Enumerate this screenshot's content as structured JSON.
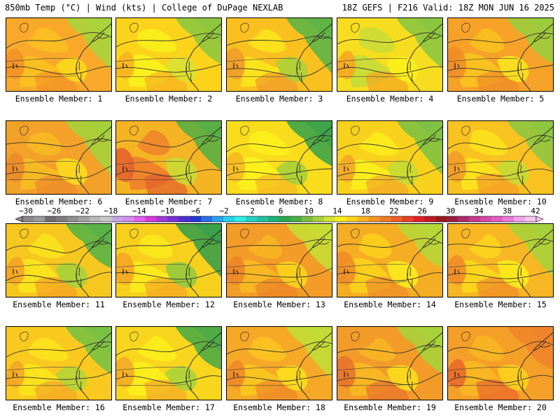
{
  "header": {
    "left": "850mb Temp (°C) | Wind (kts) | College of DuPage NEXLAB",
    "right": "18Z GEFS | F216 Valid: 18Z MON JUN 16 2025"
  },
  "members": [
    {
      "label": "Ensemble Member: 1",
      "base": "#f9a92a",
      "patches": [
        "#fbc21f",
        "#f29125",
        "#fbdc1c",
        "#a8d33a"
      ]
    },
    {
      "label": "Ensemble Member: 2",
      "base": "#fbd31b",
      "patches": [
        "#f8f21c",
        "#f7b120",
        "#d8e233",
        "#8ec63f"
      ]
    },
    {
      "label": "Ensemble Member: 3",
      "base": "#f9c020",
      "patches": [
        "#fbe71c",
        "#f09a2a",
        "#a9d13c",
        "#5fb446"
      ]
    },
    {
      "label": "Ensemble Member: 4",
      "base": "#f7dd1f",
      "patches": [
        "#c4dc38",
        "#f5a520",
        "#fbf11b",
        "#8cc63f"
      ]
    },
    {
      "label": "Ensemble Member: 5",
      "base": "#f6a228",
      "patches": [
        "#fbc41d",
        "#ef8b26",
        "#f9e81c",
        "#9ccb3c"
      ]
    },
    {
      "label": "Ensemble Member: 6",
      "base": "#f2a129",
      "patches": [
        "#f8bd22",
        "#ec8a29",
        "#fbe11c",
        "#a6d03a"
      ]
    },
    {
      "label": "Ensemble Member: 7",
      "base": "#f5b423",
      "patches": [
        "#ee7e2b",
        "#e35f2c",
        "#c7dd35",
        "#5aaf44"
      ]
    },
    {
      "label": "Ensemble Member: 8",
      "base": "#f9dc1c",
      "patches": [
        "#fbf21c",
        "#f7b721",
        "#a4d03b",
        "#3ea44a"
      ]
    },
    {
      "label": "Ensemble Member: 9",
      "base": "#f8d11d",
      "patches": [
        "#fbef1c",
        "#f3a626",
        "#c3dc35",
        "#7fc143"
      ]
    },
    {
      "label": "Ensemble Member: 10",
      "base": "#f8c221",
      "patches": [
        "#fbe51c",
        "#f39a28",
        "#c4dc35",
        "#8fc640"
      ]
    },
    {
      "label": "Ensemble Member: 11",
      "base": "#f6c71f",
      "patches": [
        "#fbe51c",
        "#f5a024",
        "#a3d03b",
        "#5ab246"
      ]
    },
    {
      "label": "Ensemble Member: 12",
      "base": "#f7d01d",
      "patches": [
        "#fbeb1c",
        "#f4a623",
        "#8fc93f",
        "#3c9f49"
      ]
    },
    {
      "label": "Ensemble Member: 13",
      "base": "#f39c27",
      "patches": [
        "#f8b922",
        "#ec8428",
        "#fbd71c",
        "#c7dd35"
      ]
    },
    {
      "label": "Ensemble Member: 14",
      "base": "#f5ad24",
      "patches": [
        "#fbd31c",
        "#ee8a28",
        "#fbee1c",
        "#b7d638"
      ]
    },
    {
      "label": "Ensemble Member: 15",
      "base": "#f7b623",
      "patches": [
        "#fbd81c",
        "#ef8a28",
        "#fbf01b",
        "#a7d13a"
      ]
    },
    {
      "label": "Ensemble Member: 16",
      "base": "#f9c91f",
      "patches": [
        "#fbe61c",
        "#f4a525",
        "#b3d539",
        "#7ac143"
      ]
    },
    {
      "label": "Ensemble Member: 17",
      "base": "#f8d61d",
      "patches": [
        "#fbf01c",
        "#f3a826",
        "#a8d23b",
        "#4fab46"
      ]
    },
    {
      "label": "Ensemble Member: 18",
      "base": "#f6a827",
      "patches": [
        "#fbc71f",
        "#ee8729",
        "#fbe21c",
        "#c2db36"
      ]
    },
    {
      "label": "Ensemble Member: 19",
      "base": "#f29b28",
      "patches": [
        "#f8b922",
        "#e7722a",
        "#fbe01c",
        "#a9d23a"
      ]
    },
    {
      "label": "Ensemble Member: 20",
      "base": "#f49f27",
      "patches": [
        "#f8b822",
        "#e8662b",
        "#fbd31c",
        "#f0842a"
      ]
    }
  ],
  "colorbar": {
    "labels": [
      "−30",
      "−26",
      "−22",
      "−18",
      "−14",
      "−10",
      "−6",
      "−2",
      "2",
      "6",
      "10",
      "14",
      "18",
      "22",
      "26",
      "30",
      "34",
      "38",
      "42"
    ],
    "colors": [
      "#8a8a8a",
      "#9a9a9a",
      "#6e6e6e",
      "#7d7d7d",
      "#8f8f8f",
      "#a3a3a3",
      "#b8b8b8",
      "#c9c9c9",
      "#c7a5e6",
      "#d48cf0",
      "#e45ff0",
      "#d43ad8",
      "#a23ad6",
      "#7a2fd0",
      "#4e2ed2",
      "#2438d8",
      "#2a6fe6",
      "#2aa3ee",
      "#25d0ef",
      "#2ff0e6",
      "#25d2c6",
      "#23c0a2",
      "#1fb076",
      "#2aa94a",
      "#4caf45",
      "#7bbf3e",
      "#a8d03a",
      "#d5e233",
      "#f7f01c",
      "#fbd41b",
      "#f9b321",
      "#f69524",
      "#f27a24",
      "#ee5f25",
      "#ea3f26",
      "#e21f26",
      "#c11b25",
      "#9a1720",
      "#9b1f3e",
      "#b02a6b",
      "#c93a8e",
      "#d64aa9",
      "#e25ec4",
      "#ee79dc",
      "#f5a3ec",
      "#f9c7f2"
    ]
  }
}
